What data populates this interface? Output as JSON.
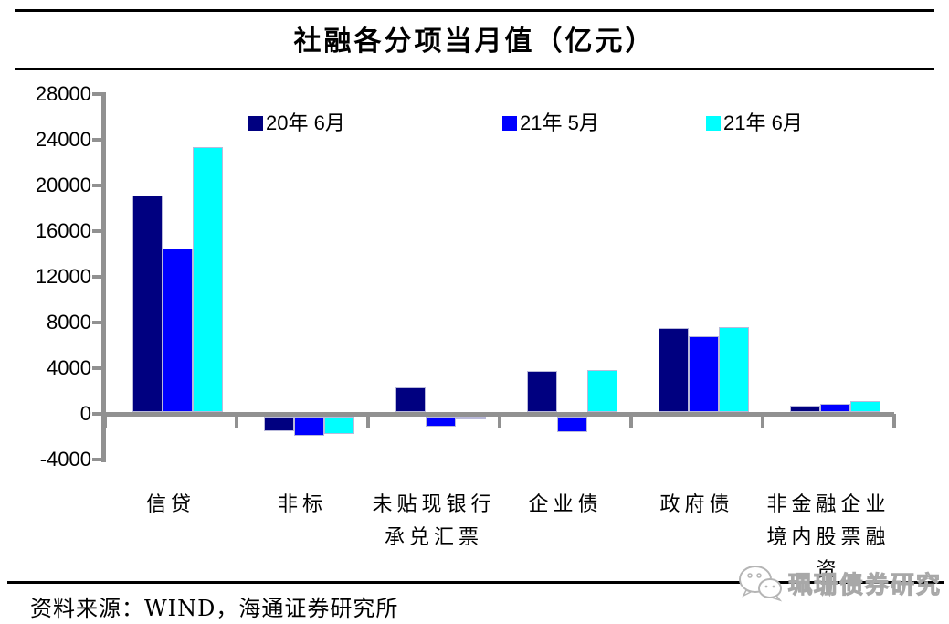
{
  "page": {
    "title": "社融各分项当月值（亿元）",
    "source": "资料来源：WIND，海通证券研究所",
    "watermark": "珮珊债券研究"
  },
  "chart_data": {
    "type": "bar",
    "title": "社融各分项当月值（亿元）",
    "unit": "亿元",
    "categories": [
      "信贷",
      "非标",
      "未贴现银行承兑汇票",
      "企业债",
      "政府债",
      "非金融企业境内股票融资"
    ],
    "category_label_lines": [
      [
        "信贷"
      ],
      [
        "非标"
      ],
      [
        "未贴现银行",
        "承兑汇票"
      ],
      [
        "企业债"
      ],
      [
        "政府债"
      ],
      [
        "非金融企业",
        "境内股票融",
        "资"
      ]
    ],
    "series": [
      {
        "name": "20年 6月",
        "color": "#000080",
        "values": [
          19000,
          -1300,
          2200,
          3600,
          7400,
          550
        ]
      },
      {
        "name": "21年 5月",
        "color": "#0000ff",
        "values": [
          14300,
          -1700,
          -900,
          -1350,
          6650,
          700
        ]
      },
      {
        "name": "21年 6月",
        "color": "#00ffff",
        "values": [
          23200,
          -1500,
          -200,
          3650,
          7450,
          950
        ]
      }
    ],
    "ylim": [
      -4000,
      28000
    ],
    "ytick_step": 4000,
    "yticks": [
      28000,
      24000,
      20000,
      16000,
      12000,
      8000,
      4000,
      0,
      -4000
    ],
    "grid": false,
    "legend_position": "top-inside",
    "axis_color": "#919191"
  }
}
